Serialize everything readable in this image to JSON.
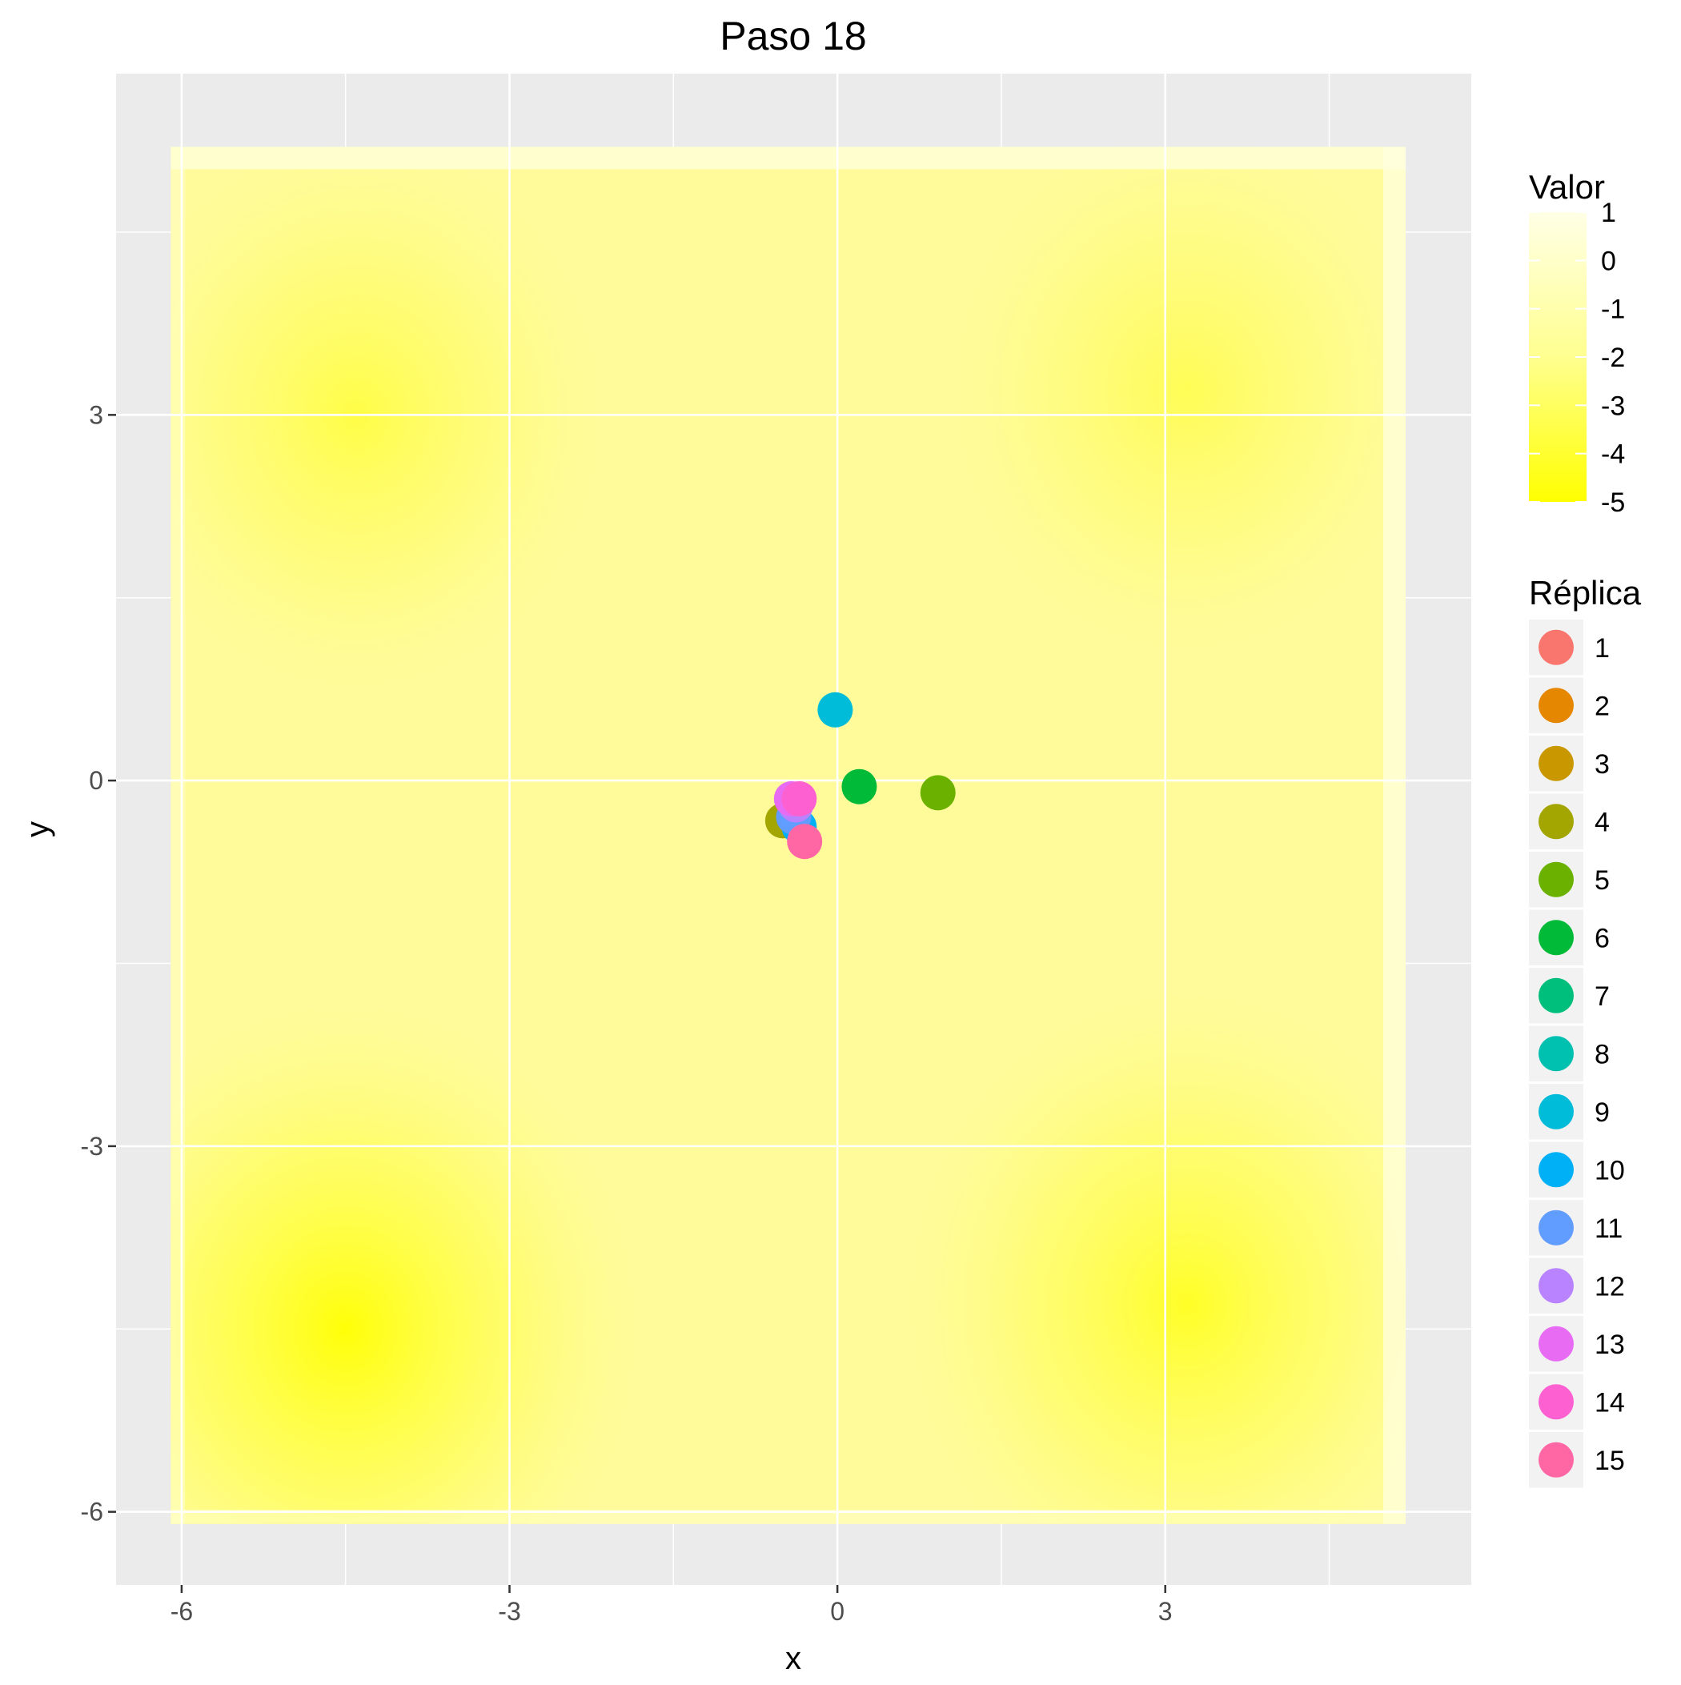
{
  "chart_data": {
    "type": "scatter",
    "title": "Paso 18",
    "xlabel": "x",
    "ylabel": "y",
    "xlim": [
      -6.6,
      5.8
    ],
    "ylim": [
      -6.6,
      5.8
    ],
    "x_ticks": [
      -6,
      -3,
      0,
      3
    ],
    "y_ticks": [
      -6,
      -3,
      0,
      3
    ],
    "x_tick_labels": [
      "-6",
      "-3",
      "0",
      "3"
    ],
    "y_tick_labels": [
      "-6",
      "-3",
      "0",
      "3"
    ],
    "grid": true,
    "background": {
      "type": "heatmap",
      "x_range": [
        -6.1,
        5.2
      ],
      "y_range": [
        -6.1,
        5.2
      ],
      "low_color": "#FFFF00",
      "high_color": "#FFFFE6",
      "value_range": [
        -5,
        1
      ]
    },
    "legend_fill": {
      "title": "Valor",
      "position": "right",
      "labels": [
        "1",
        "0",
        "-1",
        "-2",
        "-3",
        "-4",
        "-5"
      ],
      "values": [
        1,
        0,
        -1,
        -2,
        -3,
        -4,
        -5
      ]
    },
    "legend_color": {
      "title": "Réplica",
      "position": "right",
      "entries": [
        {
          "label": "1",
          "color": "#F8766D"
        },
        {
          "label": "2",
          "color": "#E58700"
        },
        {
          "label": "3",
          "color": "#C99800"
        },
        {
          "label": "4",
          "color": "#A3A500"
        },
        {
          "label": "5",
          "color": "#6BB100"
        },
        {
          "label": "6",
          "color": "#00BA38"
        },
        {
          "label": "7",
          "color": "#00BF7D"
        },
        {
          "label": "8",
          "color": "#00C0AF"
        },
        {
          "label": "9",
          "color": "#00BCD8"
        },
        {
          "label": "10",
          "color": "#00B0F6"
        },
        {
          "label": "11",
          "color": "#619CFF"
        },
        {
          "label": "12",
          "color": "#B983FF"
        },
        {
          "label": "13",
          "color": "#E76BF3"
        },
        {
          "label": "14",
          "color": "#FD61D1"
        },
        {
          "label": "15",
          "color": "#FF67A4"
        }
      ]
    },
    "series": [
      {
        "replica": "4",
        "x": -0.5,
        "y": -0.33
      },
      {
        "replica": "10",
        "x": -0.35,
        "y": -0.38
      },
      {
        "replica": "11",
        "x": -0.4,
        "y": -0.3
      },
      {
        "replica": "12",
        "x": -0.38,
        "y": -0.2
      },
      {
        "replica": "13",
        "x": -0.42,
        "y": -0.15
      },
      {
        "replica": "14",
        "x": -0.35,
        "y": -0.15
      },
      {
        "replica": "15",
        "x": -0.3,
        "y": -0.5
      },
      {
        "replica": "9",
        "x": -0.02,
        "y": 0.58
      },
      {
        "replica": "6",
        "x": 0.2,
        "y": -0.05
      },
      {
        "replica": "5",
        "x": 0.92,
        "y": -0.1
      }
    ]
  }
}
